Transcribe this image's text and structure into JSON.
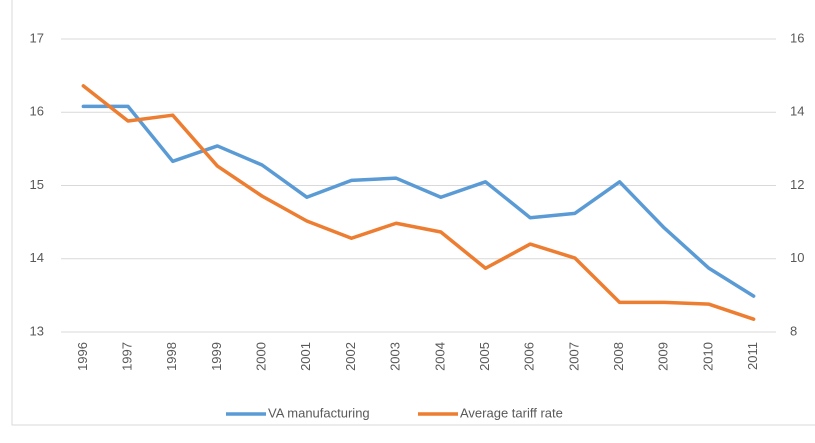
{
  "chart_data": {
    "type": "line",
    "categories": [
      "1996",
      "1997",
      "1998",
      "1999",
      "2000",
      "2001",
      "2002",
      "2003",
      "2004",
      "2005",
      "2006",
      "2007",
      "2008",
      "2009",
      "2010",
      "2011"
    ],
    "series": [
      {
        "name": "VA manufacturing",
        "color": "#5b9bd5",
        "values": [
          16.08,
          16.08,
          15.33,
          15.54,
          15.28,
          14.84,
          15.07,
          15.1,
          14.84,
          15.05,
          14.56,
          14.62,
          15.05,
          14.42,
          13.87,
          13.49
        ]
      },
      {
        "name": "Average tariff rate",
        "color": "#ed7d31",
        "axis": "y2",
        "values": [
          14.72,
          13.76,
          13.92,
          12.53,
          11.71,
          11.03,
          10.56,
          10.97,
          10.73,
          9.74,
          10.4,
          10.02,
          8.81,
          8.81,
          8.76,
          8.35
        ]
      }
    ],
    "ylim": [
      13,
      17
    ],
    "yticks": [
      13,
      14,
      15,
      16,
      17
    ],
    "y2lim": [
      8,
      16
    ],
    "y2ticks": [
      8,
      10,
      12,
      14,
      16
    ],
    "grid": true,
    "legend": "bottom"
  }
}
